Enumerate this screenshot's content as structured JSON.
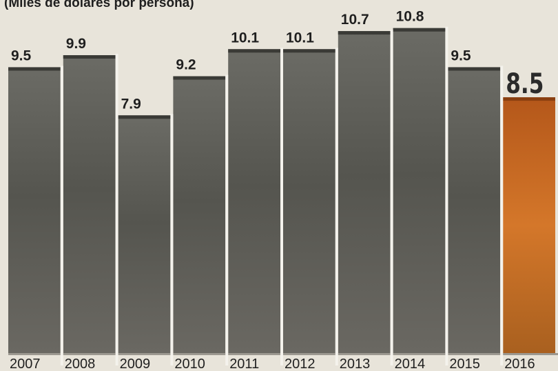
{
  "subtitle": "(Miles de dólares por persona)",
  "colors": {
    "bar_dark": "#5b5b55",
    "bar_highlight": "#c9681e",
    "label_normal": "#1f1f1f",
    "label_highlight": "#2b2b2b",
    "divider": "#f4f2ec",
    "page_bg": "#e8e4da"
  },
  "chart_data": {
    "type": "bar",
    "title": "",
    "subtitle": "(Miles de dólares por persona)",
    "xlabel": "",
    "ylabel": "",
    "categories": [
      "2007",
      "2008",
      "2009",
      "2010",
      "2011",
      "2012",
      "2013",
      "2014",
      "2015",
      "2016"
    ],
    "values": [
      9.5,
      9.9,
      7.9,
      9.2,
      10.1,
      10.1,
      10.7,
      10.8,
      9.5,
      8.5
    ],
    "value_labels": [
      "9.5",
      "9.9",
      "7.9",
      "9.2",
      "10.1",
      "10.1",
      "10.7",
      "10.8",
      "9.5",
      "8.5"
    ],
    "highlight_category": "2016",
    "ylim": [
      0,
      11
    ],
    "grid": false,
    "legend": "none"
  }
}
